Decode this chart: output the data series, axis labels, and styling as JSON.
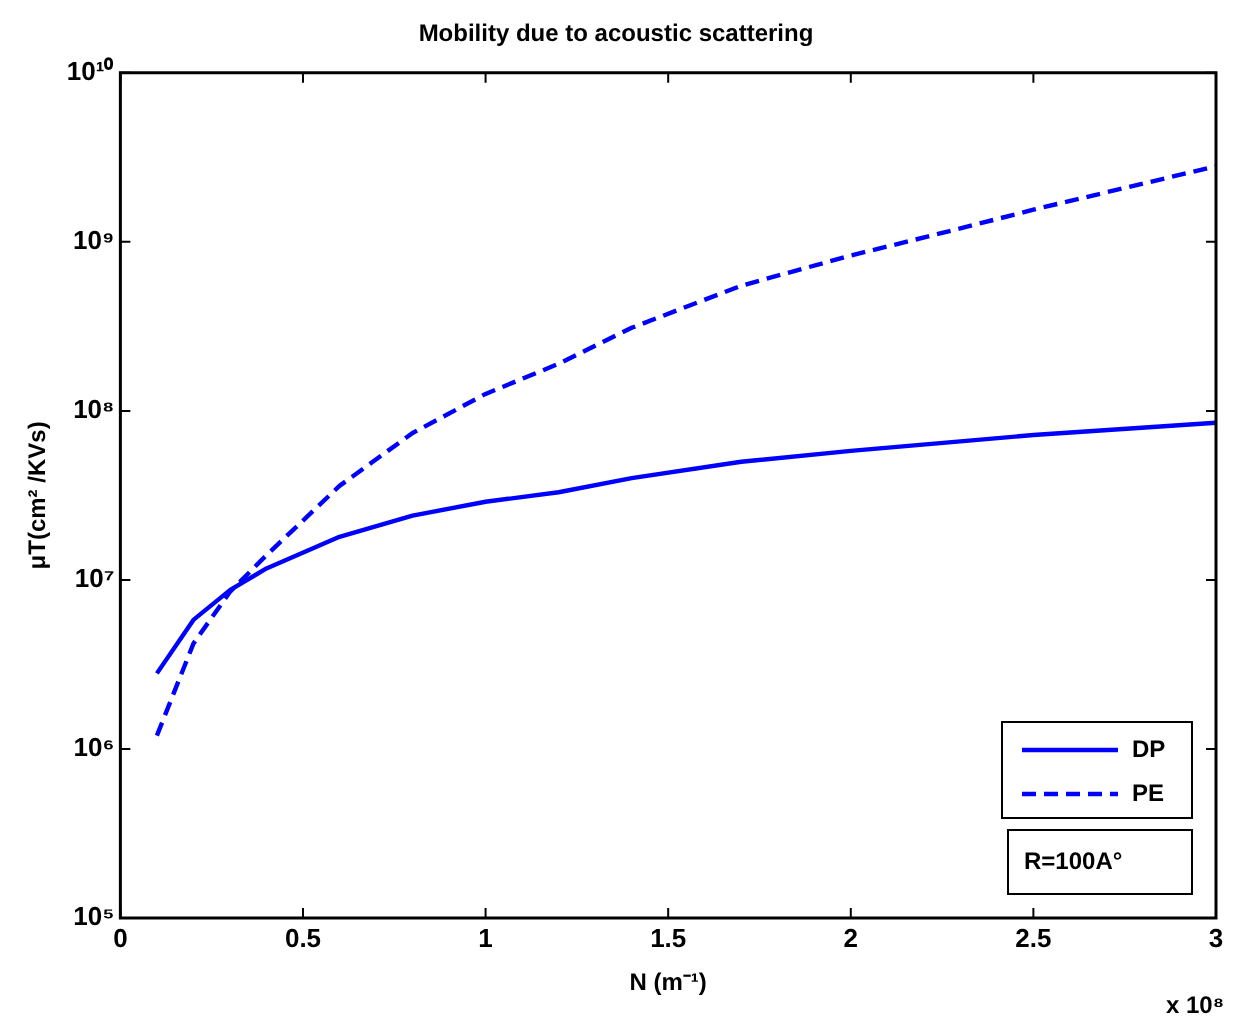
{
  "chart_data": {
    "type": "line",
    "title": "Mobility due to acoustic scattering",
    "xlabel": "N (m⁻¹)",
    "ylabel": "μT(cm² /KVs)",
    "x": [
      0.1,
      0.2,
      0.3,
      0.4,
      0.6,
      0.8,
      1.0,
      1.2,
      1.4,
      1.7,
      2.0,
      2.3,
      2.5,
      3.0
    ],
    "series": [
      {
        "name": "DP",
        "color": "#0000ff",
        "line_style": "solid",
        "values": [
          2800000,
          5800000,
          8700000,
          11700000,
          18000000,
          24000000,
          29000000,
          33000000,
          40000000,
          50000000,
          58000000,
          66000000,
          72000000,
          85000000
        ]
      },
      {
        "name": "PE",
        "color": "#0000ff",
        "line_style": "dashed",
        "values": [
          1200000,
          4200000,
          8500000,
          14000000,
          36000000,
          74000000,
          126000000,
          190000000,
          310000000,
          550000000,
          830000000,
          1200000000,
          1550000000,
          2800000000
        ]
      }
    ],
    "log": "y",
    "xlim": [
      0,
      3
    ],
    "xticks": [
      0,
      0.5,
      1,
      1.5,
      2,
      2.5,
      3
    ],
    "ylim": [
      100000,
      10000000000
    ],
    "yticks": [
      {
        "value": 100000,
        "label": "10⁵"
      },
      {
        "value": 1000000,
        "label": "10⁶"
      },
      {
        "value": 10000000,
        "label": "10⁷"
      },
      {
        "value": 100000000,
        "label": "10⁸"
      },
      {
        "value": 1000000000,
        "label": "10⁹"
      },
      {
        "value": 10000000000,
        "label": "10¹⁰"
      }
    ],
    "grid": false,
    "legend": "bottom right",
    "marker": "none",
    "annotations": [
      "R=100A°",
      "x 10⁸"
    ]
  }
}
